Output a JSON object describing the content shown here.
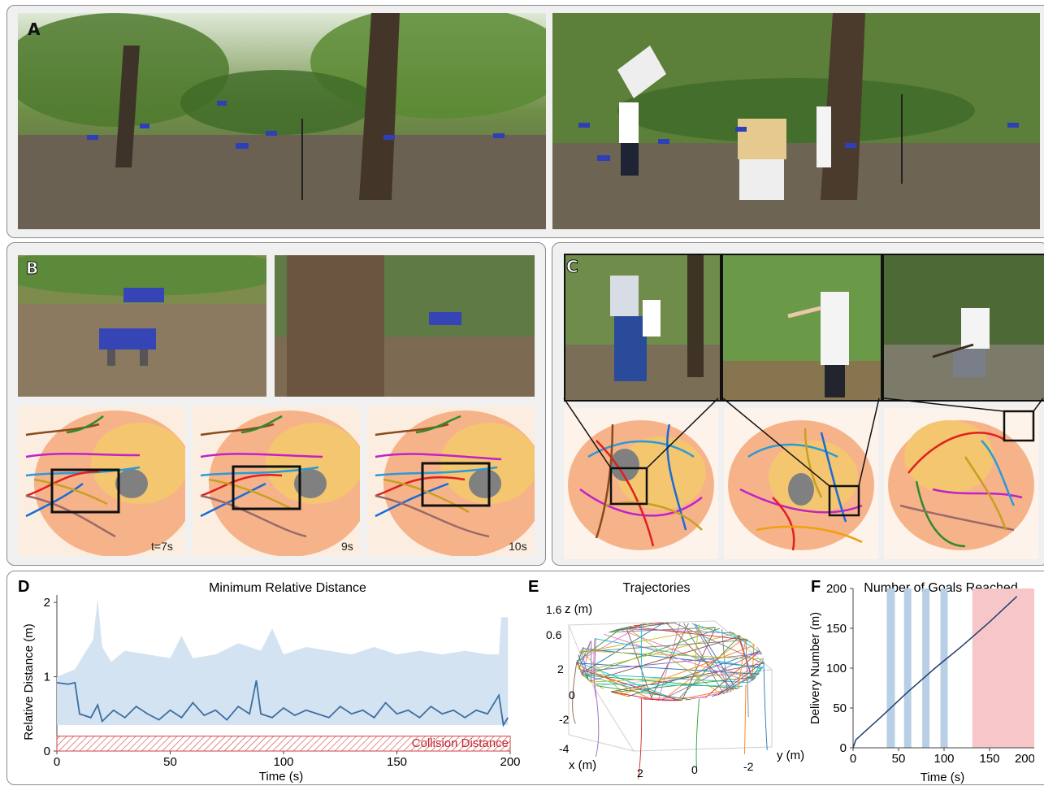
{
  "panel_labels": {
    "a": "A",
    "b": "B",
    "c": "C",
    "d": "D",
    "e": "E",
    "f": "F"
  },
  "panel_b": {
    "time_labels": [
      "t=7s",
      "9s",
      "10s"
    ]
  },
  "chart_data": [
    {
      "type": "line",
      "title": "Minimum Relative Distance",
      "xlabel": "Time (s)",
      "ylabel": "Relative Distance (m)",
      "xlim": [
        0,
        200
      ],
      "ylim": [
        0,
        2.1
      ],
      "x_ticks": [
        0,
        50,
        100,
        150,
        200
      ],
      "y_ticks": [
        0,
        1,
        2
      ],
      "annotation": "Collision Distance",
      "collision_distance": 0.2,
      "series": [
        {
          "kind": "range-upper",
          "x": [
            0,
            8,
            12,
            16,
            18,
            20,
            24,
            30,
            40,
            50,
            55,
            60,
            70,
            80,
            90,
            95,
            100,
            110,
            120,
            130,
            140,
            150,
            160,
            170,
            180,
            190,
            195,
            196,
            199
          ],
          "values": [
            1.0,
            1.1,
            1.3,
            1.5,
            2.05,
            1.4,
            1.2,
            1.35,
            1.3,
            1.25,
            1.55,
            1.25,
            1.3,
            1.45,
            1.35,
            1.65,
            1.3,
            1.4,
            1.35,
            1.3,
            1.4,
            1.3,
            1.35,
            1.3,
            1.35,
            1.3,
            1.3,
            1.8,
            1.8
          ]
        },
        {
          "kind": "line",
          "x": [
            0,
            5,
            8,
            10,
            15,
            18,
            20,
            25,
            30,
            35,
            40,
            45,
            50,
            55,
            60,
            65,
            70,
            75,
            80,
            85,
            88,
            90,
            95,
            100,
            105,
            110,
            115,
            120,
            125,
            130,
            135,
            140,
            145,
            150,
            155,
            160,
            165,
            170,
            175,
            180,
            185,
            190,
            195,
            197,
            199
          ],
          "values": [
            0.92,
            0.9,
            0.92,
            0.5,
            0.45,
            0.62,
            0.4,
            0.55,
            0.45,
            0.6,
            0.5,
            0.42,
            0.55,
            0.45,
            0.65,
            0.48,
            0.55,
            0.42,
            0.6,
            0.5,
            0.95,
            0.5,
            0.45,
            0.58,
            0.48,
            0.55,
            0.5,
            0.45,
            0.6,
            0.5,
            0.55,
            0.45,
            0.65,
            0.5,
            0.55,
            0.45,
            0.6,
            0.5,
            0.55,
            0.45,
            0.55,
            0.5,
            0.75,
            0.35,
            0.45
          ]
        }
      ]
    },
    {
      "type": "line",
      "title": "Trajectories",
      "axis_labels": {
        "x": "x (m)",
        "y": "y (m)",
        "z": "z (m)"
      },
      "z_ticks": [
        "1.6",
        "0.6"
      ],
      "x_ticks": [
        "2",
        "0",
        "-2",
        "-4"
      ],
      "y_ticks": [
        "2",
        "0",
        "-2"
      ]
    },
    {
      "type": "line",
      "title": "Number of Goals Reached",
      "xlabel": "Time (s)",
      "ylabel": "Delivery Number (m)",
      "xlim": [
        0,
        200
      ],
      "ylim": [
        0,
        200
      ],
      "x_ticks": [
        0,
        50,
        100,
        150,
        200
      ],
      "y_ticks": [
        0,
        50,
        100,
        150,
        200
      ],
      "blue_bands": [
        [
          37,
          46
        ],
        [
          56,
          64
        ],
        [
          76,
          84
        ],
        [
          96,
          104
        ]
      ],
      "red_band": [
        131,
        200
      ],
      "series": [
        {
          "x": [
            0,
            3,
            30,
            60,
            90,
            120,
            150,
            180
          ],
          "values": [
            0,
            10,
            38,
            70,
            100,
            128,
            158,
            190
          ]
        }
      ]
    }
  ]
}
